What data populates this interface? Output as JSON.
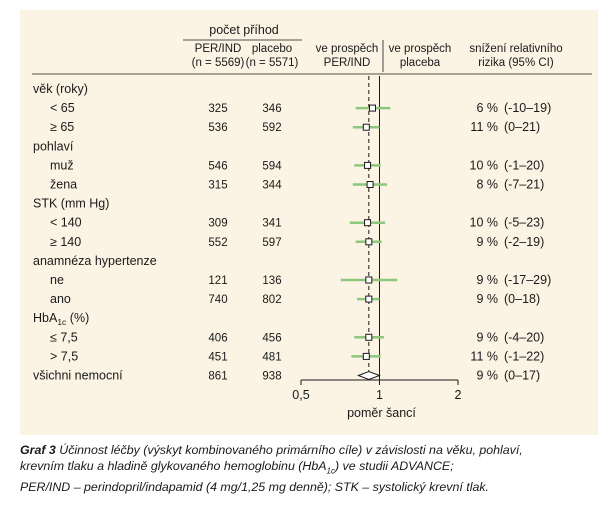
{
  "chart_data": {
    "type": "forest",
    "header": {
      "group_label": "počet příhod",
      "col_per": [
        "PER/IND",
        "(n = 5569)"
      ],
      "col_placebo": [
        "placebo",
        "(n = 5571)"
      ],
      "favors_left": [
        "ve prospěch",
        "PER/IND"
      ],
      "favors_right": [
        "ve prospěch",
        "placeba"
      ],
      "col_rrr": [
        "snížení relativního",
        "rizika (95% CI)"
      ]
    },
    "rows": [
      {
        "kind": "group",
        "label": "věk (roky)"
      },
      {
        "kind": "sub",
        "label": "< 65",
        "per": "325",
        "placebo": "346",
        "pct": "6 %",
        "ci": "(-10–19)",
        "or": 0.94,
        "lo": 0.81,
        "hi": 1.1
      },
      {
        "kind": "sub",
        "label": "≥ 65",
        "per": "536",
        "placebo": "592",
        "pct": "11 %",
        "ci": "(0–21)",
        "or": 0.89,
        "lo": 0.79,
        "hi": 1.0
      },
      {
        "kind": "group",
        "label": "pohlaví"
      },
      {
        "kind": "sub",
        "label": "muž",
        "per": "546",
        "placebo": "594",
        "pct": "10 %",
        "ci": "(-1–20)",
        "or": 0.9,
        "lo": 0.8,
        "hi": 1.01
      },
      {
        "kind": "sub",
        "label": "žena",
        "per": "315",
        "placebo": "344",
        "pct": "8 %",
        "ci": "(-7–21)",
        "or": 0.92,
        "lo": 0.79,
        "hi": 1.07
      },
      {
        "kind": "group",
        "label": "STK (mm Hg)"
      },
      {
        "kind": "sub",
        "label": "< 140",
        "per": "309",
        "placebo": "341",
        "pct": "10 %",
        "ci": "(-5–23)",
        "or": 0.9,
        "lo": 0.77,
        "hi": 1.05
      },
      {
        "kind": "sub",
        "label": "≥ 140",
        "per": "552",
        "placebo": "597",
        "pct": "9 %",
        "ci": "(-2–19)",
        "or": 0.91,
        "lo": 0.81,
        "hi": 1.02
      },
      {
        "kind": "group",
        "label": "anamnéza hypertenze"
      },
      {
        "kind": "sub",
        "label": "ne",
        "per": "121",
        "placebo": "136",
        "pct": "9 %",
        "ci": "(-17–29)",
        "or": 0.91,
        "lo": 0.71,
        "hi": 1.17
      },
      {
        "kind": "sub",
        "label": "ano",
        "per": "740",
        "placebo": "802",
        "pct": "9 %",
        "ci": "(0–18)",
        "or": 0.91,
        "lo": 0.82,
        "hi": 1.0
      },
      {
        "kind": "group",
        "label": "HbA",
        "sub": "1c",
        "label_tail": " (%)"
      },
      {
        "kind": "sub",
        "label": "≤ 7,5",
        "per": "406",
        "placebo": "456",
        "pct": "9 %",
        "ci": "(-4–20)",
        "or": 0.91,
        "lo": 0.8,
        "hi": 1.04
      },
      {
        "kind": "sub",
        "label": "> 7,5",
        "per": "451",
        "placebo": "481",
        "pct": "11 %",
        "ci": "(-1–22)",
        "or": 0.89,
        "lo": 0.78,
        "hi": 1.01
      },
      {
        "kind": "overall",
        "label": "všichni nemocní",
        "per": "861",
        "placebo": "938",
        "pct": "9 %",
        "ci": "(0–17)",
        "or": 0.91,
        "lo": 0.83,
        "hi": 1.0
      }
    ],
    "x_axis": {
      "ticks": [
        0.5,
        1,
        2
      ],
      "tick_labels": [
        "0,5",
        "1",
        "2"
      ],
      "scale": "log",
      "range": [
        0.5,
        2
      ],
      "label": "poměr šancí",
      "reference_line": 0.91
    },
    "colors": {
      "background": "#fbf3e4",
      "ci": "#8cc77c",
      "marker": "#1a1a1a",
      "text": "#1a1a1a"
    }
  },
  "caption": {
    "fig_label": "Graf 3",
    "line1": "Účinnost léčby (výskyt kombinovaného primárního cíle) v závislosti na věku, pohlaví,",
    "line2a": "krevním tlaku a hladině glykovaného hemoglobinu (HbA",
    "line2_sub": "1c",
    "line2b": ") ve studii ADVANCE;",
    "line3": "PER/IND – perindopril/indapamid (4 mg/1,25 mg denně); STK – systolický krevní tlak."
  }
}
